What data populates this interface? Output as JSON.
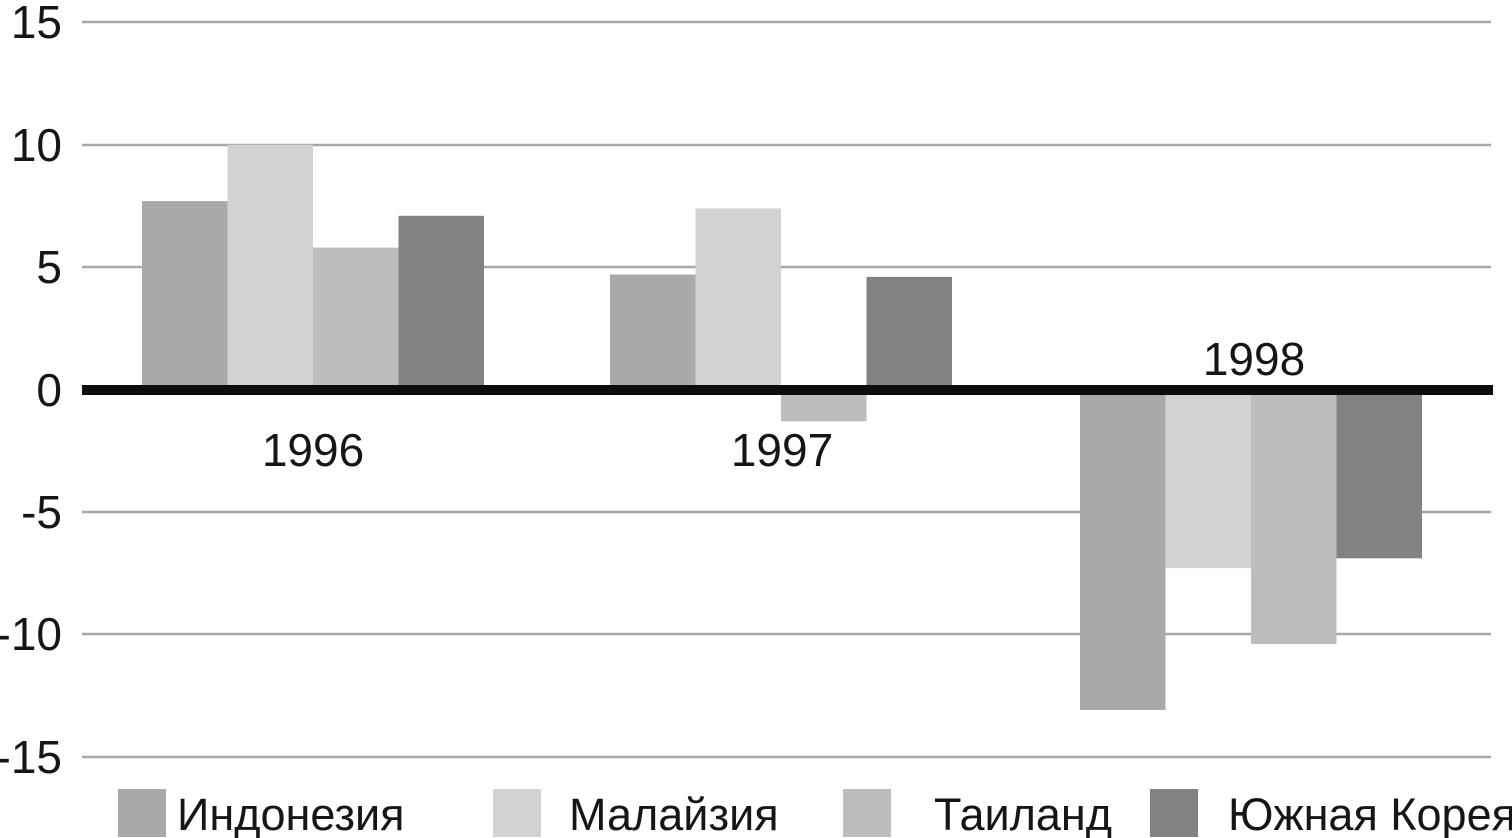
{
  "chart_data": {
    "type": "bar",
    "title": "",
    "xlabel": "",
    "ylabel": "",
    "categories": [
      "1996",
      "1997",
      "1998"
    ],
    "series": [
      {
        "name": "Индонезия",
        "color": "#a9a9ac",
        "values": [
          7.7,
          4.7,
          -13.1
        ]
      },
      {
        "name": "Малайзия",
        "color": "#d2d2d4",
        "values": [
          10.0,
          7.4,
          -7.3
        ]
      },
      {
        "name": "Таиланд",
        "color": "#bdbdbf",
        "values": [
          5.8,
          -1.3,
          -10.4
        ]
      },
      {
        "name": "Южная Корея",
        "color": "#828285",
        "values": [
          7.1,
          4.6,
          -6.9
        ]
      }
    ],
    "ylim": [
      -15,
      15
    ],
    "ytick_values": [
      15,
      10,
      5,
      0,
      -5,
      -10,
      -15
    ],
    "ytick_labels": [
      "15",
      "10",
      "5",
      "0",
      "-5",
      "-10",
      "-15"
    ],
    "grid": true,
    "legend_position": "bottom",
    "colors": {
      "gridline": "#a7a7a7",
      "zero_line": "#0d0d0d",
      "text": "#161616",
      "background": "#ffffff"
    }
  }
}
